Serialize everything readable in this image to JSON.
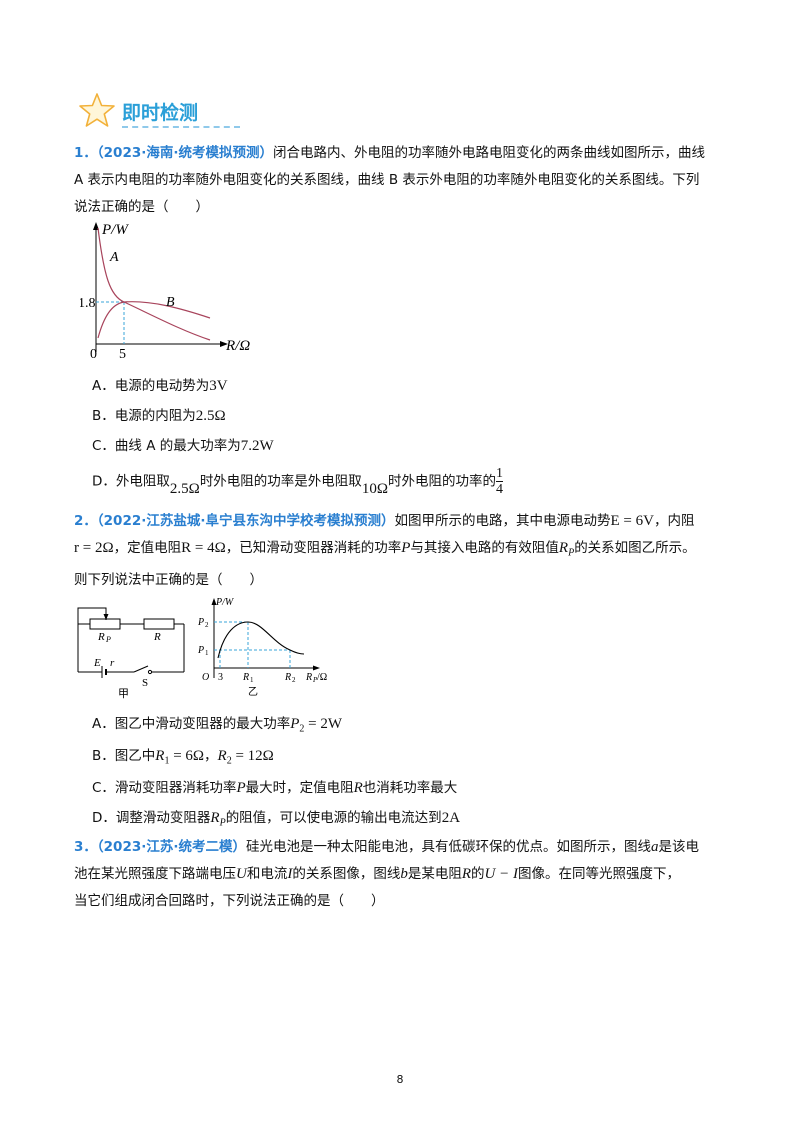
{
  "header": {
    "title": "即时检测"
  },
  "q1": {
    "num": "1．",
    "source": "（2023·海南·统考模拟预测）",
    "text_a": "闭合电路内、外电阻的功率随外电路电阻变化的两条曲线如图所示，曲线",
    "text_b": "A 表示内电阻的功率随外电阻变化的关系图线，曲线 B 表示外电阻的功率随外电阻变化的关系图线。下列",
    "text_c": "说法正确的是（　　）",
    "graph": {
      "ylabel": "P/W",
      "xlabel": "R/Ω",
      "curve_a": "A",
      "curve_b": "B",
      "y_tick": "1.8",
      "x_tick": "5",
      "origin": "0"
    },
    "options": {
      "a_pre": "A．电源的电动势为",
      "a_val": "3V",
      "b_pre": "B．电源的内阻为",
      "b_val": "2.5Ω",
      "c_pre": "C．曲线 A 的最大功率为",
      "c_val": "7.2W",
      "d_pre": "D．外电阻取",
      "d_v1": "2.5Ω",
      "d_mid": "时外电阻的功率是外电阻取",
      "d_v2": "10Ω",
      "d_post": "时外电阻的功率的",
      "d_num": "1",
      "d_den": "4"
    }
  },
  "q2": {
    "num": "2．",
    "source": "（2022·江苏盐城·阜宁县东沟中学校考模拟预测）",
    "text_a": "如图甲所示的电路，其中电源电动势",
    "emf": "E = 6V",
    "text_a2": "，内阻",
    "r_val": "r = 2Ω",
    "text_b": "，定值电阻",
    "R_val": "R = 4Ω",
    "text_b2": "，已知滑动变阻器消耗的功率",
    "P_sym": "P",
    "text_b3": "与其接入电路的有效阻值",
    "Rp_sym": "R",
    "Rp_sub": "P",
    "text_b4": "的关系如图乙所示。",
    "text_c": "则下列说法中正确的是（　　）",
    "circuit": {
      "rp": "R",
      "rp_sub": "P",
      "r_fixed": "R",
      "E": "E",
      "r": "r",
      "S": "S",
      "caption": "甲"
    },
    "graph": {
      "ylabel": "P/W",
      "p2": "P",
      "p2_sub": "2",
      "p1": "P",
      "p1_sub": "1",
      "origin": "O",
      "x3": "3",
      "r1": "R",
      "r1_sub": "1",
      "r2": "R",
      "r2_sub": "2",
      "xlabel": "R",
      "xlabel_sub": "P",
      "xlabel_unit": "/Ω",
      "caption": "乙"
    },
    "options": {
      "a_pre": "A．图乙中滑动变阻器的最大功率",
      "a_val": "P",
      "a_sub": "2",
      "a_eq": " = 2W",
      "b_pre": "B．图乙中",
      "b_v1": "R",
      "b_v1_sub": "1",
      "b_v1_eq": " = 6Ω",
      "b_sep": "，",
      "b_v2": "R",
      "b_v2_sub": "2",
      "b_v2_eq": " = 12Ω",
      "c_text1": "C．滑动变阻器消耗功率",
      "c_p": "P",
      "c_text2": "最大时，定值电阻",
      "c_r": "R",
      "c_text3": "也消耗功率最大",
      "d_pre": "D．调整滑动变阻器",
      "d_rp": "R",
      "d_rp_sub": "P",
      "d_mid": "的阻值，可以使电源的输出电流达到",
      "d_val": "2A"
    }
  },
  "q3": {
    "num": "3．",
    "source": "（2023·江苏·统考二模）",
    "text_a": "硅光电池是一种太阳能电池，具有低碳环保的优点。如图所示，图线",
    "a_sym": "a",
    "text_a2": "是该电",
    "text_b": "池在某光照强度下路端电压",
    "U_sym": "U",
    "text_b2": "和电流",
    "I_sym": "I",
    "text_b3": "的关系图像，图线",
    "b_sym": "b",
    "text_b4": "是某电阻",
    "R_sym": "R",
    "text_b5": "的",
    "UI": "U − I",
    "text_b6": "图像。在同等光照强度下，",
    "text_c": "当它们组成闭合回路时，下列说法正确的是（　　）"
  },
  "page": {
    "number": "8"
  }
}
